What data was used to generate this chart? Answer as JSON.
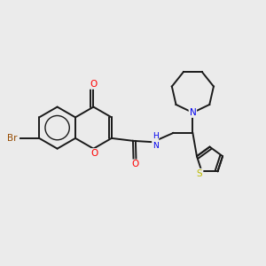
{
  "background_color": "#ebebeb",
  "bond_color": "#1a1a1a",
  "bond_width": 1.4,
  "atom_colors": {
    "O": "#ff0000",
    "N": "#0000ee",
    "Br": "#964B00",
    "S": "#bbbb00",
    "C": "#1a1a1a",
    "H": "#1a1a1a"
  },
  "figsize": [
    3.0,
    3.0
  ],
  "dpi": 100,
  "xlim": [
    0,
    10
  ],
  "ylim": [
    0,
    10
  ]
}
